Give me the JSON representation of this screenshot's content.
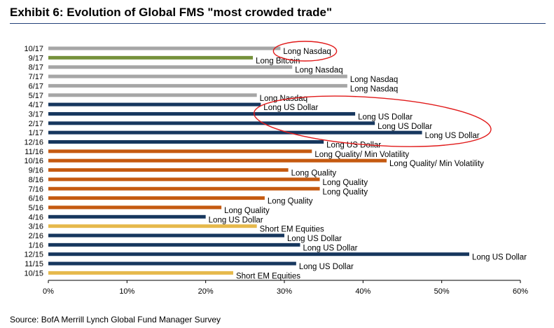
{
  "header": {
    "title": "Exhibit 6: Evolution of Global FMS \"most crowded trade\""
  },
  "footer": {
    "source": "Source: BofA Merrill Lynch Global Fund Manager Survey"
  },
  "chart_data": {
    "type": "bar",
    "orientation": "horizontal",
    "title": "Exhibit 6: Evolution of Global FMS \"most crowded trade\"",
    "xlabel": "",
    "ylabel": "",
    "xlim": [
      0,
      60
    ],
    "x_ticks": [
      "0%",
      "10%",
      "20%",
      "30%",
      "40%",
      "50%",
      "60%"
    ],
    "grid": false,
    "colors": {
      "Long Nasdaq": "#a6a6a6",
      "Long Bitcoin": "#76923c",
      "Long US Dollar": "#17375e",
      "Long Quality/ Min Volatility": "#c55a11",
      "Long Quality": "#c55a11",
      "Short EM Equities": "#e6b94c"
    },
    "highlight_color": "#e11a1a",
    "bars": [
      {
        "date": "10/17",
        "value": 29.5,
        "label": "Long Nasdaq",
        "circled": true
      },
      {
        "date": "9/17",
        "value": 26.0,
        "label": "Long Bitcoin"
      },
      {
        "date": "8/17",
        "value": 31.0,
        "label": "Long Nasdaq"
      },
      {
        "date": "7/17",
        "value": 38.0,
        "label": "Long Nasdaq"
      },
      {
        "date": "6/17",
        "value": 38.0,
        "label": "Long Nasdaq"
      },
      {
        "date": "5/17",
        "value": 26.5,
        "label": "Long Nasdaq"
      },
      {
        "date": "4/17",
        "value": 27.0,
        "label": "Long US Dollar"
      },
      {
        "date": "3/17",
        "value": 39.0,
        "label": "Long US Dollar"
      },
      {
        "date": "2/17",
        "value": 41.5,
        "label": "Long US Dollar"
      },
      {
        "date": "1/17",
        "value": 47.5,
        "label": "Long US Dollar"
      },
      {
        "date": "12/16",
        "value": 35.0,
        "label": "Long US Dollar"
      },
      {
        "date": "11/16",
        "value": 33.5,
        "label": "Long Quality/ Min Volatility"
      },
      {
        "date": "10/16",
        "value": 43.0,
        "label": "Long Quality/ Min Volatility"
      },
      {
        "date": "9/16",
        "value": 30.5,
        "label": "Long Quality"
      },
      {
        "date": "8/16",
        "value": 34.5,
        "label": "Long Quality"
      },
      {
        "date": "7/16",
        "value": 34.5,
        "label": "Long Quality"
      },
      {
        "date": "6/16",
        "value": 27.5,
        "label": "Long Quality"
      },
      {
        "date": "5/16",
        "value": 22.0,
        "label": "Long Quality"
      },
      {
        "date": "4/16",
        "value": 20.0,
        "label": "Long US Dollar"
      },
      {
        "date": "3/16",
        "value": 26.5,
        "label": "Short EM Equities"
      },
      {
        "date": "2/16",
        "value": 30.0,
        "label": "Long US Dollar"
      },
      {
        "date": "1/16",
        "value": 32.0,
        "label": "Long US Dollar"
      },
      {
        "date": "12/15",
        "value": 53.5,
        "label": "Long US Dollar"
      },
      {
        "date": "11/15",
        "value": 31.5,
        "label": "Long US Dollar"
      },
      {
        "date": "10/15",
        "value": 23.5,
        "label": "Short EM Equities"
      }
    ],
    "annotations": [
      {
        "type": "ellipse",
        "around": [
          "10/17"
        ]
      },
      {
        "type": "ellipse",
        "around": [
          "4/17",
          "3/17",
          "2/17",
          "1/17"
        ]
      }
    ]
  }
}
